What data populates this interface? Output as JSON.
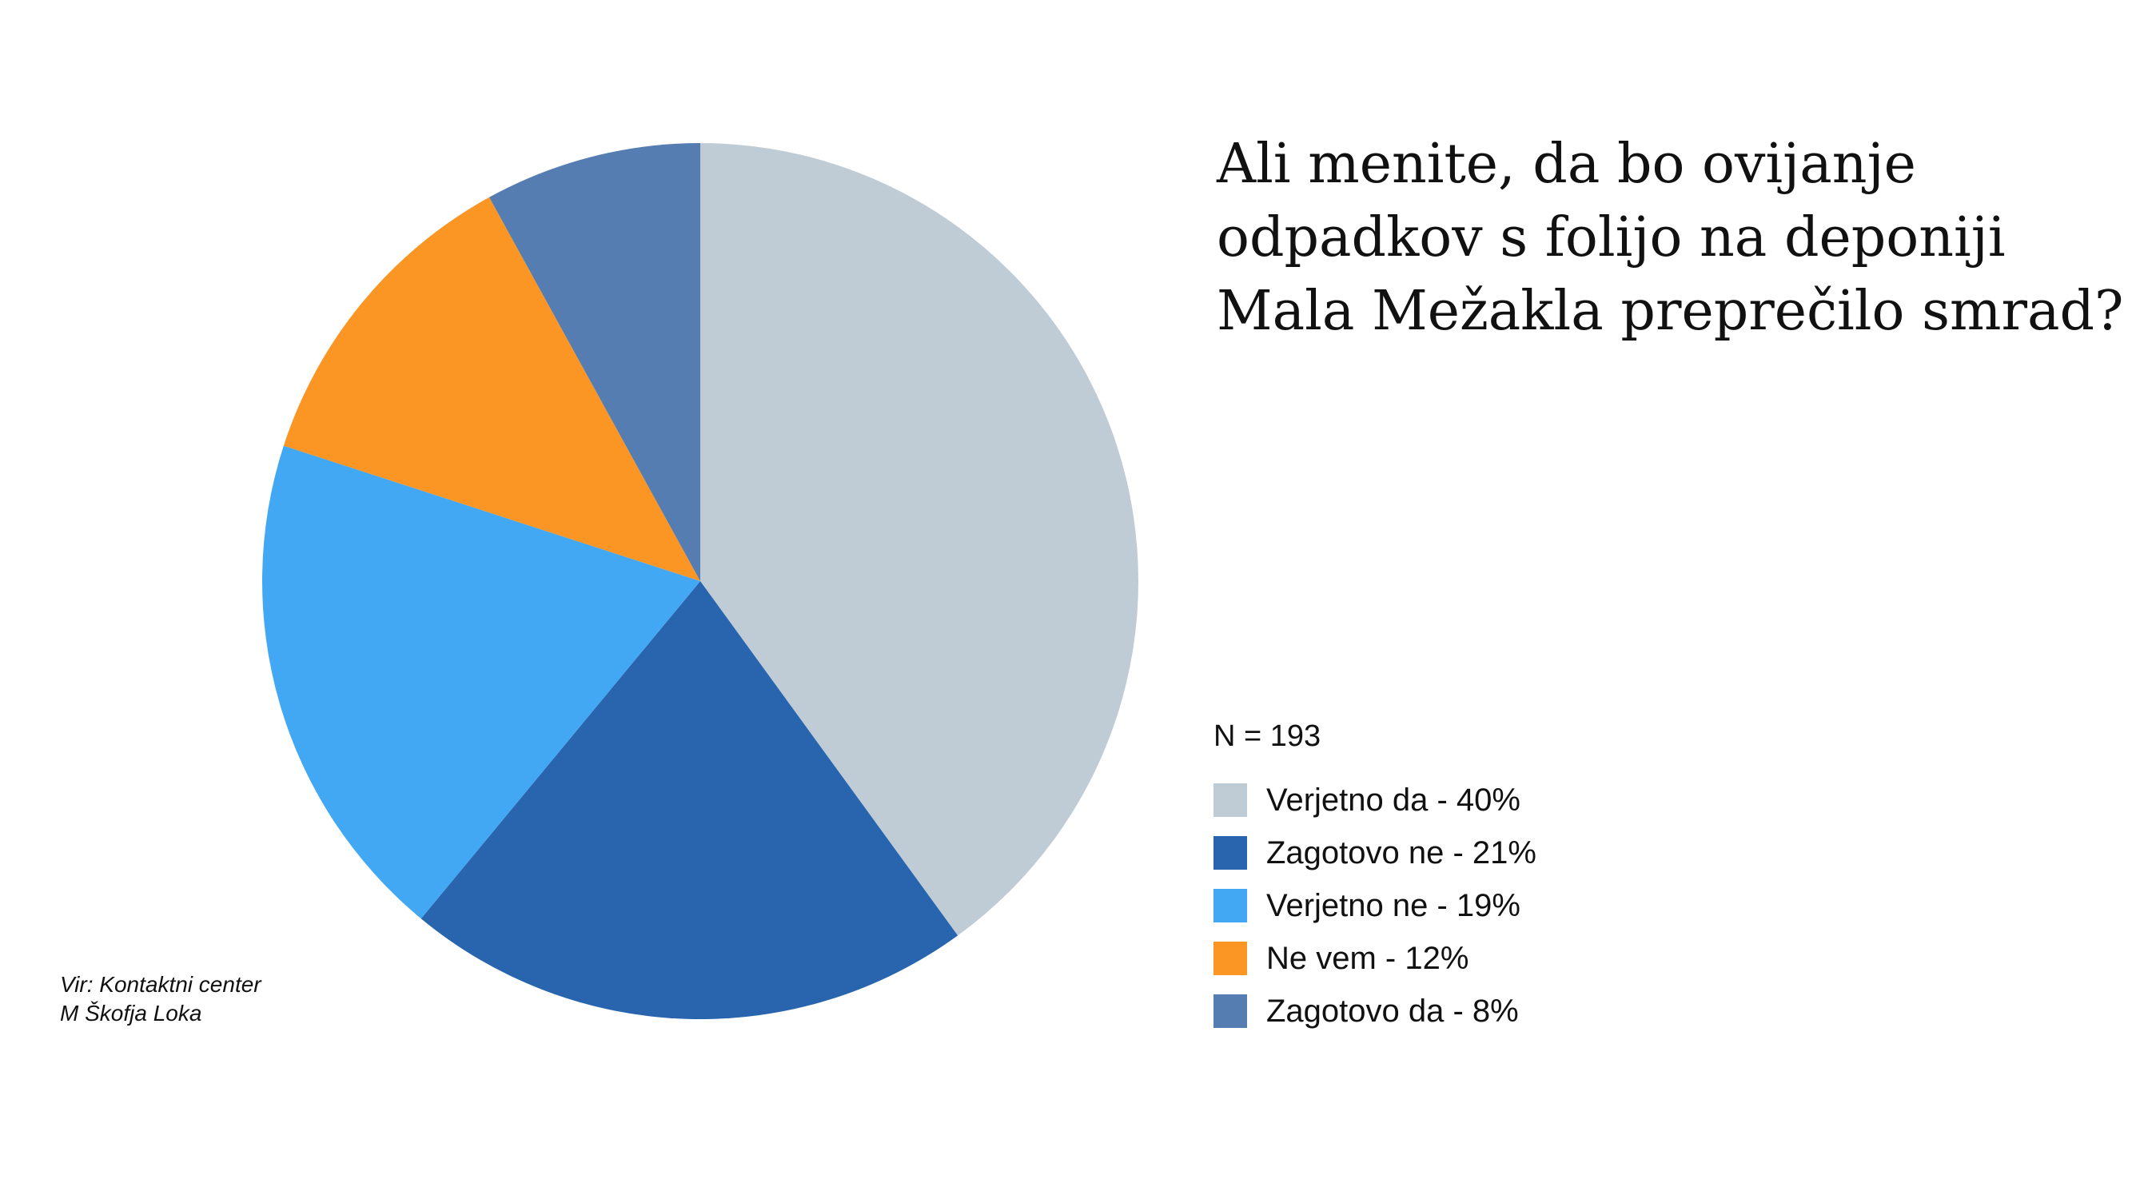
{
  "title_lines": [
    "Ali menite, da bo ovijanje",
    "odpadkov s folijo na deponiji",
    "Mala Mežakla preprečilo smrad?"
  ],
  "sample_size": "N = 193",
  "source_lines": [
    "Vir: Kontaktni center",
    "M Škofja Loka"
  ],
  "chart_data": {
    "type": "pie",
    "title": "Ali menite, da bo ovijanje odpadkov s folijo na deponiji Mala Mežakla preprečilo smrad?",
    "unit": "%",
    "slices": [
      {
        "label": "Verjetno da - 40%",
        "value": 40,
        "color": "#bfccd5"
      },
      {
        "label": "Zagotovo ne - 21%",
        "value": 21,
        "color": "#2965ae"
      },
      {
        "label": "Verjetno ne - 19%",
        "value": 19,
        "color": "#43a8f4"
      },
      {
        "label": "Ne vem - 12%",
        "value": 12,
        "color": "#fb9523"
      },
      {
        "label": "Zagotovo da - 8%",
        "value": 8,
        "color": "#557db2"
      }
    ],
    "start": "12 o'clock",
    "direction": "clockwise",
    "legend_position": "right"
  }
}
